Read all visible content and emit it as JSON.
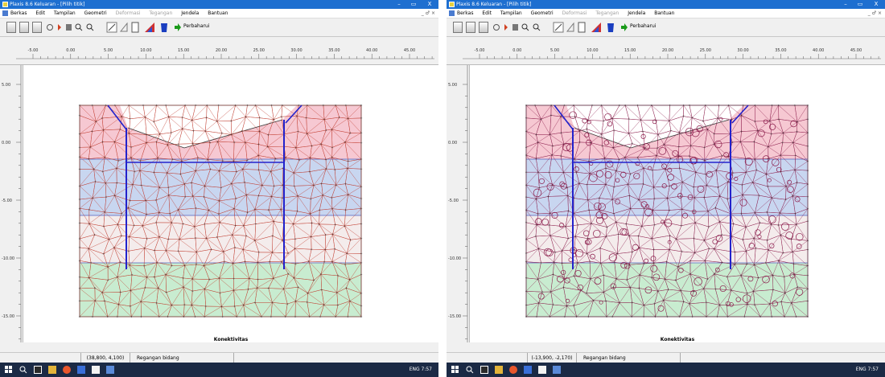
{
  "colors": {
    "titlebar": "#1e6fd0",
    "layer1": "#f6c8d2",
    "layer2": "#c8d6f0",
    "layer3": "#f4ecec",
    "layer4": "#c8ecd0",
    "mesh_left": "#c0392b",
    "mesh_right": "#8b1a4a",
    "structure": "#2222cc",
    "taskbar": "#1b2a45"
  },
  "icons": [
    "app-icon",
    "close-icon",
    "minimize-icon",
    "maximize-icon",
    "open-icon",
    "save-icon",
    "print-icon",
    "zoom-in-icon",
    "zoom-out-icon",
    "arrow-right-icon",
    "taskbar-icons"
  ],
  "screens": [
    {
      "title": "Plaxis 8.6 Keluaran - [Pilih titik]",
      "win_min": "–",
      "win_max": "▭",
      "win_close": "X",
      "menu": {
        "m0": "Berkas",
        "m1": "Edit",
        "m2": "Tampilan",
        "m3": "Geometri",
        "m4": "Deformasi",
        "m5": "Tegangan",
        "m6": "Jendela",
        "m7": "Bantuan"
      },
      "menu_right": "_ ♂ ×",
      "toolbar_label": "Perbaharui",
      "ruler_x": [
        "-5.00",
        "0.00",
        "5.00",
        "10.00",
        "15.00",
        "20.00",
        "25.00",
        "30.00",
        "35.00",
        "40.00",
        "45.00"
      ],
      "ruler_y": [
        "5.00",
        "0.00",
        "-5.00",
        "-10.00",
        "-15.00"
      ],
      "caption": "Konektivitas",
      "status_coords": "(38,800, 4,100)",
      "status_mode": "Regangan bidang",
      "tray_time": "ENG  7:57"
    },
    {
      "title": "Plaxis 8.6 Keluaran - [Pilih titik]",
      "win_min": "–",
      "win_max": "▭",
      "win_close": "X",
      "menu": {
        "m0": "Berkas",
        "m1": "Edit",
        "m2": "Tampilan",
        "m3": "Geometri",
        "m4": "Deformasi",
        "m5": "Tegangan",
        "m6": "Jendela",
        "m7": "Bantuan"
      },
      "menu_right": "_ ♂ ×",
      "toolbar_label": "Perbaharui",
      "ruler_x": [
        "-5.00",
        "0.00",
        "5.00",
        "10.00",
        "15.00",
        "20.00",
        "25.00",
        "30.00",
        "35.00",
        "40.00",
        "45.00"
      ],
      "ruler_y": [
        "5.00",
        "0.00",
        "-5.00",
        "-10.00",
        "-15.00"
      ],
      "caption": "Konektivitas",
      "status_coords": "(-13,900, -2,170)",
      "status_mode": "Regangan bidang",
      "tray_time": "ENG  7:57"
    }
  ]
}
